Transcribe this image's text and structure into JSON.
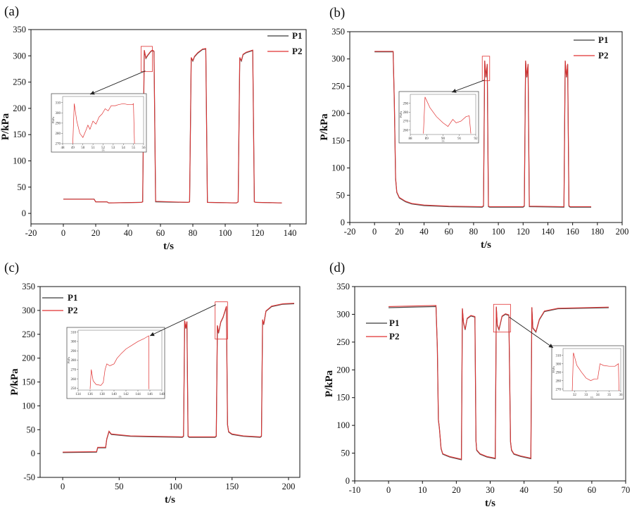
{
  "colors": {
    "p1": "#3a3a3a",
    "p2": "#e03030",
    "axis": "#111111",
    "zoom_box": "#e03030"
  },
  "legend": {
    "p1": "P1",
    "p2": "P2"
  },
  "chart_data": [
    {
      "id": "a",
      "label": "(a)",
      "type": "line",
      "xlabel": "t/s",
      "ylabel": "P/kPa",
      "xlim": [
        -20,
        150
      ],
      "ylim": [
        -20,
        350
      ],
      "xticks": [
        -20,
        0,
        20,
        40,
        60,
        80,
        100,
        120,
        140
      ],
      "yticks": [
        0,
        50,
        100,
        150,
        200,
        250,
        300,
        350
      ],
      "series": [
        {
          "name": "P1",
          "x": [
            0,
            19,
            20,
            27,
            28,
            48,
            49,
            50,
            51,
            52,
            53,
            54,
            55,
            56,
            57,
            77,
            78,
            79,
            80,
            81,
            83,
            86,
            88,
            89,
            107,
            108,
            109,
            110,
            111,
            113,
            117,
            118,
            119,
            135
          ],
          "y": [
            27,
            27,
            22,
            22,
            20,
            21,
            22,
            310,
            295,
            300,
            304,
            308,
            310,
            308,
            22,
            21,
            22,
            296,
            290,
            298,
            305,
            312,
            313,
            21,
            20,
            22,
            296,
            290,
            302,
            306,
            310,
            22,
            21,
            20
          ]
        },
        {
          "name": "P2",
          "x": [
            0,
            19,
            20,
            27,
            28,
            48,
            49,
            50,
            51,
            52,
            53,
            54,
            55,
            56,
            57,
            77,
            78,
            79,
            80,
            81,
            83,
            86,
            88,
            89,
            107,
            108,
            109,
            110,
            111,
            113,
            117,
            118,
            119,
            135
          ],
          "y": [
            27,
            27,
            22,
            22,
            20,
            21,
            22,
            311,
            296,
            301,
            305,
            309,
            311,
            309,
            23,
            21,
            22,
            297,
            291,
            299,
            306,
            313,
            314,
            21,
            20,
            22,
            297,
            291,
            303,
            307,
            311,
            22,
            21,
            20
          ]
        }
      ],
      "zoom_window": {
        "x": [
          48,
          55
        ],
        "y": [
          270,
          318
        ]
      },
      "inset": {
        "xlim": [
          48,
          56
        ],
        "ylim": [
          270,
          316
        ],
        "xticks": [
          48,
          49,
          50,
          51,
          52,
          53,
          54,
          55,
          56
        ],
        "yticks": [
          270,
          280,
          290,
          300,
          310
        ],
        "ylabel": "P/kPa",
        "xlabel": "t/s",
        "x": [
          49,
          49.15,
          49.4,
          49.7,
          50,
          50.3,
          50.5,
          50.7,
          51,
          51.3,
          51.6,
          51.9,
          52.2,
          52.5,
          52.8,
          53.2,
          53.5,
          54,
          54.5,
          54.9,
          55,
          55.1
        ],
        "y": [
          270,
          309,
          292,
          280,
          276,
          283,
          288,
          284,
          292,
          289,
          296,
          299,
          304,
          302,
          307,
          307,
          308,
          309,
          308,
          308,
          309,
          270
        ]
      }
    },
    {
      "id": "b",
      "label": "(b)",
      "type": "line",
      "xlabel": "t/s",
      "ylabel": "P/kPa",
      "xlim": [
        -20,
        200
      ],
      "ylim": [
        0,
        350
      ],
      "xticks": [
        -20,
        0,
        20,
        40,
        60,
        80,
        100,
        120,
        140,
        160,
        180,
        200
      ],
      "yticks": [
        0,
        50,
        100,
        150,
        200,
        250,
        300,
        350
      ],
      "series": [
        {
          "name": "P1",
          "x": [
            0,
            15,
            16,
            17,
            18,
            20,
            25,
            30,
            40,
            60,
            87,
            88,
            89,
            90,
            91,
            92,
            93,
            120,
            121,
            122,
            123,
            124,
            125,
            153,
            154,
            155,
            156,
            157,
            158,
            175
          ],
          "y": [
            313,
            313,
            220,
            80,
            55,
            45,
            38,
            34,
            31,
            29,
            28,
            30,
            296,
            266,
            290,
            29,
            28,
            28,
            30,
            296,
            266,
            290,
            29,
            28,
            296,
            266,
            290,
            30,
            28,
            28
          ]
        },
        {
          "name": "P2",
          "x": [
            0,
            15,
            16,
            17,
            18,
            20,
            25,
            30,
            40,
            60,
            87,
            88,
            89,
            90,
            91,
            92,
            93,
            120,
            121,
            122,
            123,
            124,
            125,
            153,
            154,
            155,
            156,
            157,
            158,
            175
          ],
          "y": [
            314,
            314,
            222,
            82,
            56,
            46,
            39,
            35,
            32,
            30,
            29,
            31,
            297,
            267,
            291,
            30,
            29,
            29,
            31,
            297,
            267,
            291,
            30,
            29,
            297,
            267,
            291,
            31,
            29,
            29
          ]
        }
      ],
      "zoom_window": {
        "x": [
          87,
          93
        ],
        "y": [
          260,
          305
        ]
      },
      "inset": {
        "xlim": [
          88,
          92
        ],
        "ylim": [
          255,
          300
        ],
        "xticks": [
          88,
          89,
          90,
          91,
          92
        ],
        "yticks": [
          260,
          270,
          280,
          290
        ],
        "ylabel": "P/kPa",
        "xlabel": "t/s",
        "x": [
          88.8,
          88.9,
          89.2,
          89.6,
          90,
          90.3,
          90.6,
          90.8,
          91.1,
          91.4,
          91.6,
          91.7
        ],
        "y": [
          256,
          297,
          285,
          275,
          268,
          264,
          272,
          268,
          270,
          275,
          276,
          256
        ]
      }
    },
    {
      "id": "c",
      "label": "(c)",
      "type": "line",
      "xlabel": "t/s",
      "ylabel": "P/kPa",
      "xlim": [
        -20,
        210
      ],
      "ylim": [
        -50,
        350
      ],
      "xticks": [
        0,
        50,
        100,
        150,
        200
      ],
      "yticks": [
        -50,
        0,
        50,
        100,
        150,
        200,
        250,
        300,
        350
      ],
      "series": [
        {
          "name": "P1",
          "x": [
            0,
            30,
            31,
            38,
            39,
            41,
            43,
            60,
            80,
            106,
            107,
            108,
            109,
            110,
            111,
            112,
            135,
            136,
            137,
            138,
            140,
            142,
            144,
            145,
            146,
            147,
            150,
            160,
            175,
            176,
            177,
            178,
            180,
            185,
            195,
            205
          ],
          "y": [
            2,
            3,
            12,
            12,
            30,
            46,
            40,
            36,
            35,
            34,
            36,
            278,
            262,
            276,
            36,
            34,
            34,
            36,
            268,
            252,
            275,
            285,
            300,
            308,
            60,
            45,
            40,
            36,
            34,
            36,
            280,
            270,
            298,
            308,
            313,
            314
          ]
        },
        {
          "name": "P2",
          "x": [
            0,
            30,
            31,
            38,
            39,
            41,
            43,
            60,
            80,
            106,
            107,
            108,
            109,
            110,
            111,
            112,
            135,
            136,
            137,
            138,
            140,
            142,
            144,
            145,
            146,
            147,
            150,
            160,
            175,
            176,
            177,
            178,
            180,
            185,
            195,
            205
          ],
          "y": [
            3,
            4,
            13,
            13,
            31,
            47,
            41,
            37,
            36,
            35,
            37,
            279,
            263,
            277,
            37,
            35,
            35,
            37,
            269,
            253,
            276,
            286,
            301,
            309,
            61,
            46,
            41,
            37,
            35,
            37,
            281,
            271,
            299,
            309,
            314,
            315
          ]
        }
      ],
      "zoom_window": {
        "x": [
          135,
          146
        ],
        "y": [
          240,
          318
        ]
      },
      "inset": {
        "xlim": [
          134,
          148
        ],
        "ylim": [
          248,
          312
        ],
        "xticks": [
          134,
          136,
          138,
          140,
          142,
          144,
          146,
          148
        ],
        "yticks": [
          250,
          260,
          270,
          280,
          290,
          300,
          310
        ],
        "ylabel": "P/kPa",
        "xlabel": "t/s",
        "x": [
          136,
          136.2,
          136.5,
          137,
          137.8,
          138.2,
          138.5,
          138.8,
          139.3,
          140,
          140.5,
          141.2,
          142,
          143,
          144,
          145,
          145.8,
          145.85
        ],
        "y": [
          249,
          270,
          258,
          254,
          253,
          256,
          270,
          276,
          274,
          276,
          282,
          287,
          292,
          296,
          300,
          303,
          306,
          249
        ]
      }
    },
    {
      "id": "d",
      "label": "(d)",
      "type": "line",
      "xlabel": "t/s",
      "ylabel": "P/kPa",
      "xlim": [
        -10,
        70
      ],
      "ylim": [
        0,
        350
      ],
      "xticks": [
        -10,
        0,
        10,
        20,
        30,
        40,
        50,
        60,
        70
      ],
      "yticks": [
        0,
        50,
        100,
        150,
        200,
        250,
        300,
        350
      ],
      "series": [
        {
          "name": "P1",
          "x": [
            0,
            14,
            14.4,
            14.7,
            15,
            15.5,
            16,
            18,
            21.5,
            21.8,
            22.1,
            22.6,
            23.2,
            24.3,
            25.5,
            25.8,
            26,
            27,
            29,
            31.5,
            31.8,
            32.1,
            32.6,
            33.5,
            34.5,
            35.5,
            36,
            36.3,
            37,
            39,
            42,
            42.3,
            42.6,
            43.5,
            44.5,
            46,
            50,
            65
          ],
          "y": [
            312,
            314,
            240,
            110,
            95,
            58,
            48,
            43,
            38,
            310,
            285,
            272,
            292,
            297,
            295,
            72,
            55,
            48,
            43,
            40,
            313,
            280,
            272,
            296,
            300,
            298,
            70,
            55,
            48,
            44,
            40,
            312,
            275,
            268,
            290,
            305,
            310,
            312
          ]
        },
        {
          "name": "P2",
          "x": [
            0,
            14,
            14.4,
            14.7,
            15,
            15.5,
            16,
            18,
            21.5,
            21.8,
            22.1,
            22.6,
            23.2,
            24.3,
            25.5,
            25.8,
            26,
            27,
            29,
            31.5,
            31.8,
            32.1,
            32.6,
            33.5,
            34.5,
            35.5,
            36,
            36.3,
            37,
            39,
            42,
            42.3,
            42.6,
            43.5,
            44.5,
            46,
            50,
            65
          ],
          "y": [
            314,
            316,
            242,
            111,
            96,
            59,
            49,
            44,
            39,
            311,
            286,
            273,
            293,
            298,
            296,
            73,
            56,
            49,
            44,
            41,
            314,
            281,
            273,
            297,
            301,
            299,
            71,
            56,
            49,
            45,
            41,
            313,
            276,
            269,
            291,
            306,
            311,
            313
          ]
        }
      ],
      "zoom_window": {
        "x": [
          31,
          36
        ],
        "y": [
          268,
          318
        ]
      },
      "inset": {
        "xlim": [
          31,
          36
        ],
        "ylim": [
          268,
          318
        ],
        "xticks": [
          32,
          33,
          34,
          35,
          36
        ],
        "yticks": [
          270,
          280,
          290,
          300,
          310
        ],
        "ylabel": "P/kPa",
        "xlabel": "t/s",
        "x": [
          31.8,
          31.9,
          32.2,
          32.6,
          33,
          33.4,
          33.7,
          34,
          34.2,
          34.5,
          35,
          35.5,
          35.8,
          35.85
        ],
        "y": [
          268,
          313,
          298,
          290,
          283,
          280,
          282,
          282,
          300,
          298,
          297,
          297,
          300,
          268
        ]
      }
    }
  ]
}
